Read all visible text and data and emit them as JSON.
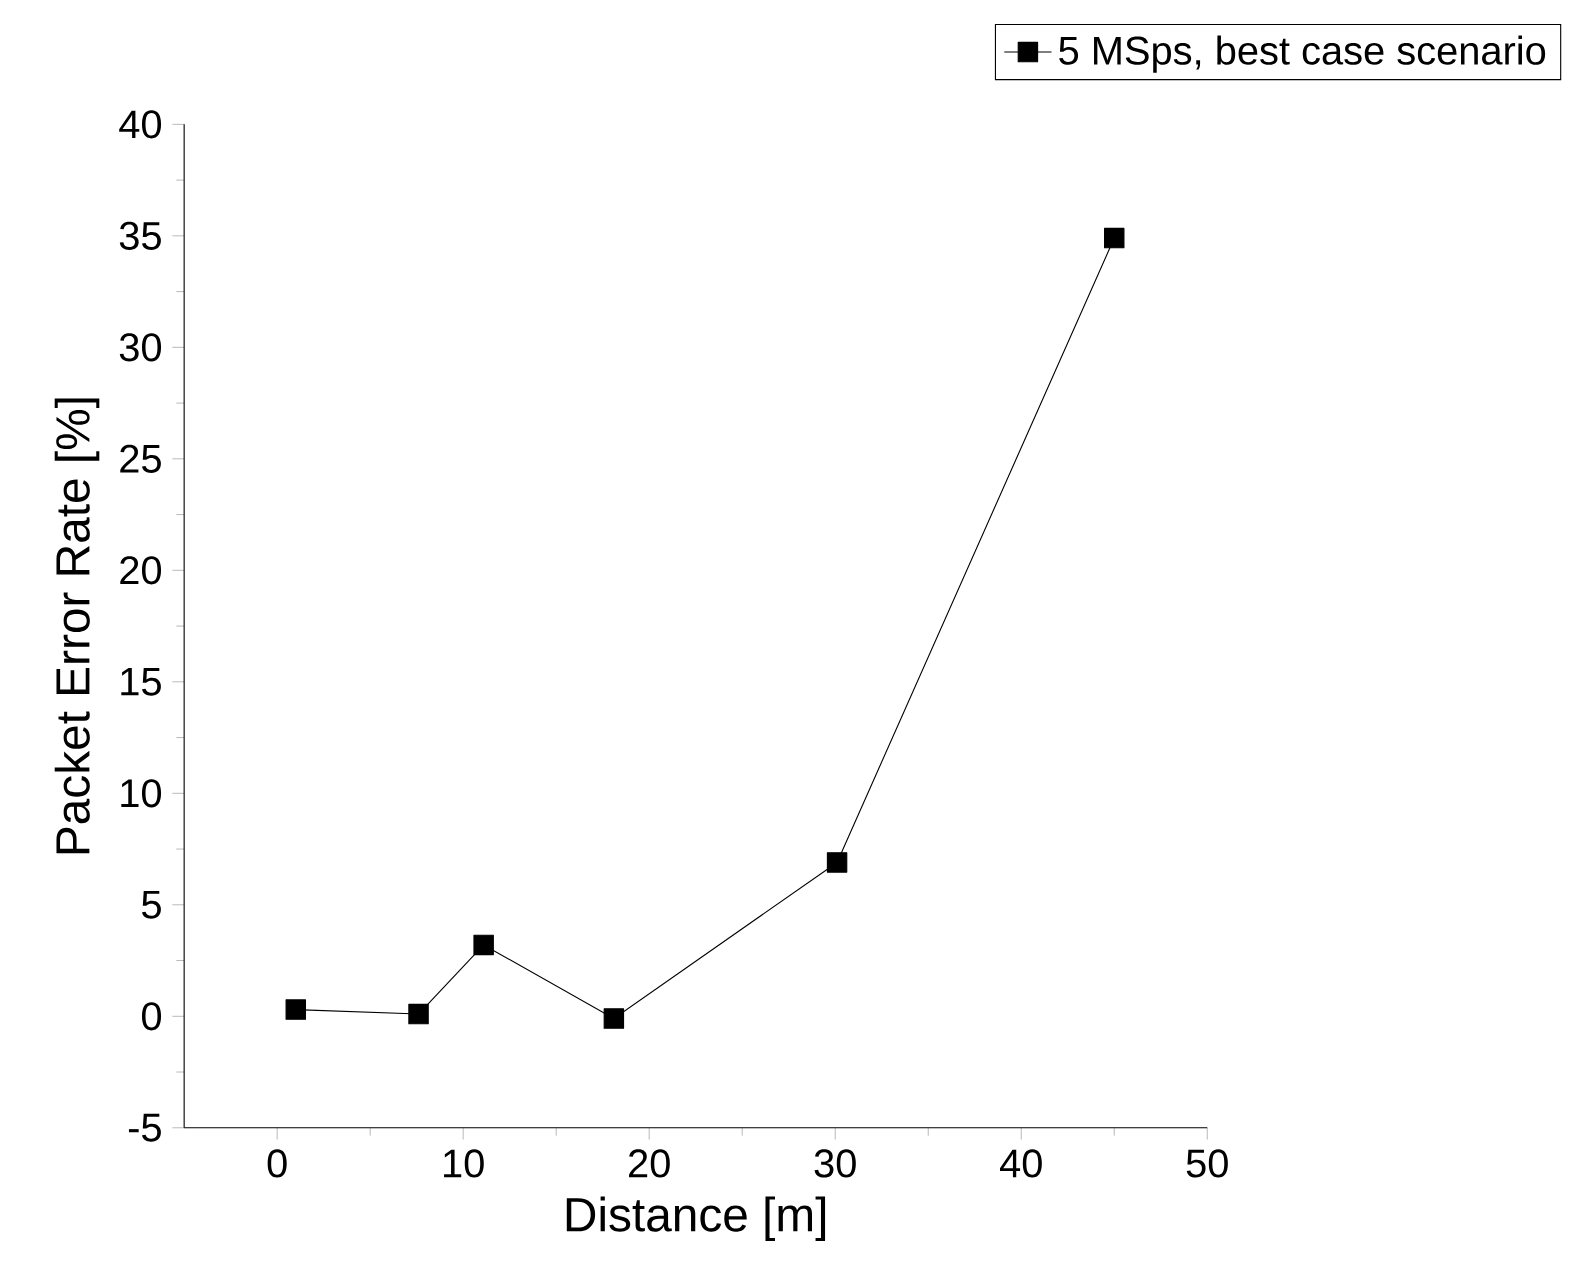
{
  "chart_data": {
    "type": "line",
    "xlabel": "Distance [m]",
    "ylabel": "Packet Error Rate [%]",
    "x": [
      1.0,
      7.6,
      11.1,
      18.1,
      30.1,
      45
    ],
    "series": [
      {
        "name": "5 MSps, best case scenario",
        "color": "#000000",
        "values": [
          0.3,
          0.1,
          3.2,
          -0.1,
          6.9,
          34.9
        ]
      }
    ],
    "xlim": [
      -5,
      50
    ],
    "ylim": [
      -5,
      40
    ],
    "xticks": [
      0,
      10,
      20,
      30,
      40,
      50
    ],
    "yticks": [
      -5,
      0,
      5,
      10,
      15,
      20,
      25,
      30,
      35,
      40
    ],
    "marker": "square",
    "line_style": "solid",
    "legend": "top right",
    "grid": false
  }
}
